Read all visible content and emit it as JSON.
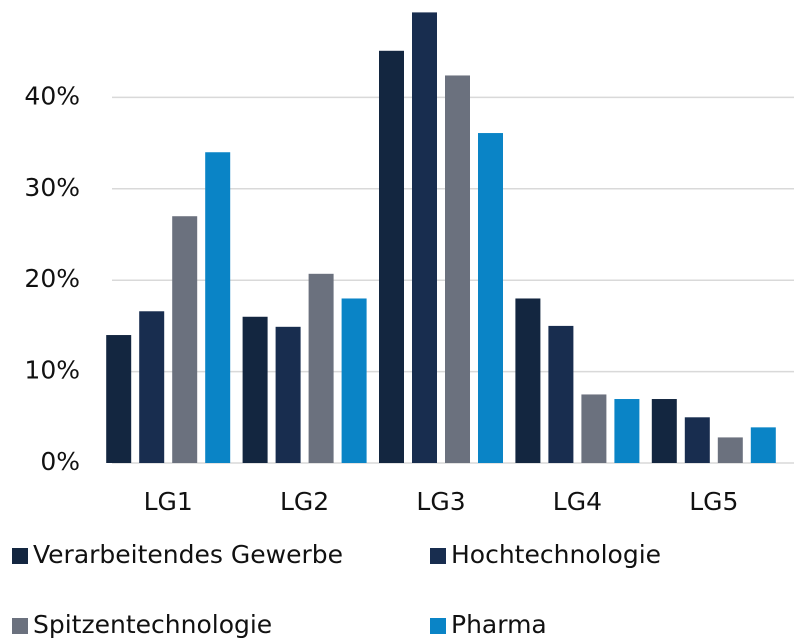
{
  "chart_data": {
    "type": "bar",
    "categories": [
      "LG1",
      "LG2",
      "LG3",
      "LG4",
      "LG5"
    ],
    "series": [
      {
        "name": "Verarbeitendes Gewerbe",
        "color": "#132640",
        "values": [
          14.0,
          16.0,
          45.1,
          18.0,
          7.0
        ]
      },
      {
        "name": "Hochtechnologie",
        "color": "#182d4f",
        "values": [
          16.6,
          14.9,
          49.3,
          15.0,
          5.0
        ]
      },
      {
        "name": "Spitzentechnologie",
        "color": "#6b717e",
        "values": [
          27.0,
          20.7,
          42.4,
          7.5,
          2.8
        ]
      },
      {
        "name": "Pharma",
        "color": "#0a84c6",
        "values": [
          34.0,
          18.0,
          36.1,
          7.0,
          3.9
        ]
      }
    ],
    "ylim": [
      0,
      50
    ],
    "yticks": [
      {
        "value": 0,
        "label": "0%"
      },
      {
        "value": 10,
        "label": "10%"
      },
      {
        "value": 20,
        "label": "20%"
      },
      {
        "value": 30,
        "label": "30%"
      },
      {
        "value": 40,
        "label": "40%"
      }
    ],
    "grid": true
  }
}
